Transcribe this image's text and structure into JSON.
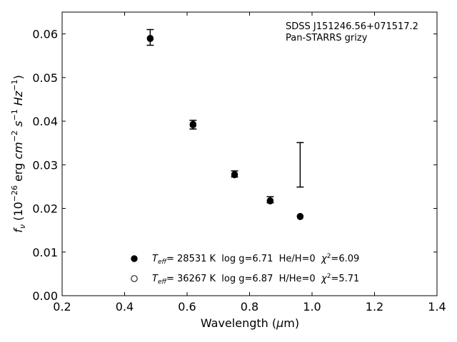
{
  "chart_data": {
    "type": "scatter",
    "annotation_lines": [
      "SDSS J151246.56+071517.2",
      "Pan-STARRS grizy"
    ],
    "xlabel": "Wavelength (μm)",
    "ylabel": "f_ν (10^-26 erg cm^-2 s^-1 Hz^-1)",
    "xlim": [
      0.2,
      1.4
    ],
    "ylim": [
      0.0,
      0.065
    ],
    "xticks": [
      0.2,
      0.4,
      0.6,
      0.8,
      1.0,
      1.2,
      1.4
    ],
    "yticks": [
      0.0,
      0.01,
      0.02,
      0.03,
      0.04,
      0.05,
      0.06
    ],
    "grid": false,
    "legend_position": "bottom-center",
    "observed": {
      "x": [
        0.482,
        0.619,
        0.752,
        0.866,
        0.962
      ],
      "y": [
        0.0592,
        0.0392,
        0.0279,
        0.022,
        0.03
      ],
      "yerr": [
        0.0018,
        0.001,
        0.0007,
        0.0007,
        0.0051
      ]
    },
    "series": [
      {
        "name": "T_eff= 28531 K  log g=6.71  He/H=0  χ²=6.09",
        "marker": "filled-circle",
        "x": [
          0.482,
          0.619,
          0.752,
          0.866,
          0.962
        ],
        "y": [
          0.059,
          0.0393,
          0.0278,
          0.0218,
          0.0182
        ]
      },
      {
        "name": "T_eff= 36267 K  log g=6.87  H/He=0  χ²=5.71",
        "marker": "open-circle",
        "x": [
          0.482,
          0.619,
          0.752,
          0.866,
          0.962
        ],
        "y": [
          0.0589,
          0.0391,
          0.0277,
          0.0217,
          0.0181
        ]
      }
    ],
    "legend": [
      {
        "teff_value": "= 28531 K",
        "rest": "  log g=6.71  He/H=0  ",
        "chi2_value": "=6.09"
      },
      {
        "teff_value": "= 36267 K",
        "rest": "  log g=6.87  H/He=0  ",
        "chi2_value": "=5.71"
      }
    ]
  }
}
